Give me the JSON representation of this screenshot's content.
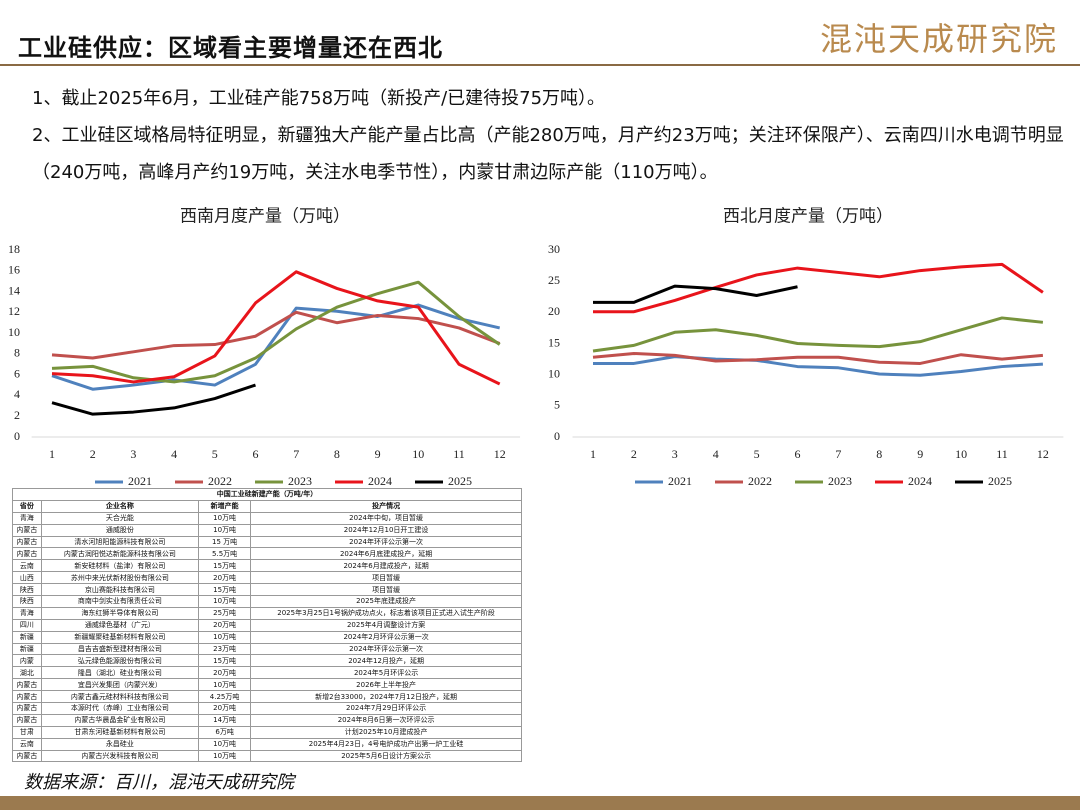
{
  "header": {
    "title": "工业硅供应：区域看主要增量还在西北",
    "logo": "混沌天成研究院"
  },
  "bullets": [
    "1、截止2025年6月，工业硅产能758万吨（新投产/已建待投75万吨）。",
    "2、工业硅区域格局特征明显，新疆独大产能产量占比高（产能280万吨，月产约23万吨；关注环保限产）、云南四川水电调节明显（240万吨，高峰月产约19万吨，关注水电季节性），内蒙甘肃边际产能（110万吨）。"
  ],
  "chart_data": [
    {
      "type": "line",
      "title": "西南月度产量（万吨）",
      "categories": [
        "1",
        "2",
        "3",
        "4",
        "5",
        "6",
        "7",
        "8",
        "9",
        "10",
        "11",
        "12"
      ],
      "ylim": [
        0,
        18
      ],
      "yticks": [
        0,
        2,
        4,
        6,
        8,
        10,
        12,
        14,
        16,
        18
      ],
      "grid": false,
      "series": [
        {
          "name": "2021",
          "color": "#4f81bd",
          "values": [
            5.9,
            4.6,
            5.0,
            5.5,
            5.0,
            7.0,
            12.4,
            12.1,
            11.6,
            12.7,
            11.4,
            10.5
          ]
        },
        {
          "name": "2022",
          "color": "#c0504d",
          "values": [
            7.9,
            7.6,
            8.2,
            8.8,
            8.9,
            9.7,
            12.0,
            11.0,
            11.7,
            11.4,
            10.5,
            9.0
          ]
        },
        {
          "name": "2023",
          "color": "#77933c",
          "values": [
            6.6,
            6.8,
            5.7,
            5.3,
            5.9,
            7.6,
            10.4,
            12.5,
            13.8,
            14.9,
            11.6,
            8.9
          ]
        },
        {
          "name": "2024",
          "color": "#e8141b",
          "values": [
            6.1,
            5.9,
            5.3,
            5.8,
            7.8,
            12.9,
            15.9,
            14.3,
            13.1,
            12.5,
            7.0,
            5.1
          ]
        },
        {
          "name": "2025",
          "color": "#000000",
          "values": [
            3.3,
            2.2,
            2.4,
            2.8,
            3.7,
            5.0,
            null,
            null,
            null,
            null,
            null,
            null
          ]
        }
      ]
    },
    {
      "type": "line",
      "title": "西北月度产量（万吨）",
      "categories": [
        "1",
        "2",
        "3",
        "4",
        "5",
        "6",
        "7",
        "8",
        "9",
        "10",
        "11",
        "12"
      ],
      "ylim": [
        0,
        30
      ],
      "yticks": [
        0,
        5,
        10,
        15,
        20,
        25,
        30
      ],
      "grid": false,
      "series": [
        {
          "name": "2021",
          "color": "#4f81bd",
          "values": [
            11.8,
            11.8,
            12.9,
            12.5,
            12.3,
            11.3,
            11.1,
            10.1,
            9.9,
            10.5,
            11.3,
            11.7
          ]
        },
        {
          "name": "2022",
          "color": "#c0504d",
          "values": [
            12.8,
            13.4,
            13.1,
            12.2,
            12.4,
            12.8,
            12.8,
            12.0,
            11.8,
            13.2,
            12.5,
            13.1
          ]
        },
        {
          "name": "2023",
          "color": "#77933c",
          "values": [
            13.8,
            14.7,
            16.8,
            17.2,
            16.3,
            15.0,
            14.7,
            14.5,
            15.3,
            17.2,
            19.1,
            18.4
          ]
        },
        {
          "name": "2024",
          "color": "#e8141b",
          "values": [
            20.1,
            20.1,
            21.9,
            24.0,
            26.0,
            27.1,
            26.4,
            25.7,
            26.7,
            27.3,
            27.7,
            23.2
          ]
        },
        {
          "name": "2025",
          "color": "#000000",
          "values": [
            21.6,
            21.6,
            24.2,
            23.8,
            22.7,
            24.1,
            null,
            null,
            null,
            null,
            null,
            null
          ]
        }
      ]
    }
  ],
  "table": {
    "title": "中国工业硅新建产能（万吨/年）",
    "columns": [
      "省份",
      "企业名称",
      "新增产能",
      "投产情况"
    ],
    "rows": [
      [
        "青海",
        "天合光能",
        "10万吨",
        "2024年中旬，项目暂缓"
      ],
      [
        "内蒙古",
        "通威股份",
        "10万吨",
        "2024年12月10日开工建设"
      ],
      [
        "内蒙古",
        "清水河旭阳能源科技有限公司",
        "15 万吨",
        "2024年环评公示第一次"
      ],
      [
        "内蒙古",
        "内蒙古润阳悦达新能源科技有限公司",
        "5.5万吨",
        "2024年6月底建成投产，延期"
      ],
      [
        "云南",
        "新安硅材料（盐津）有限公司",
        "15万吨",
        "2024年6月建成投产，延期"
      ],
      [
        "山西",
        "苏州中来光伏新材股份有限公司",
        "20万吨",
        "项目暂缓"
      ],
      [
        "陕西",
        "京山赛能科技有限公司",
        "15万吨",
        "项目暂缓"
      ],
      [
        "陕西",
        "商南中剑实业有限责任公司",
        "10万吨",
        "2025年底建成投产"
      ],
      [
        "青海",
        "海东红狮半导体有限公司",
        "25万吨",
        "2025年3月25日1号锅炉成功点火，标志着该项目正式进入试生产阶段"
      ],
      [
        "四川",
        "通威绿色基材（广元）",
        "20万吨",
        "2025年4月调整设计方案"
      ],
      [
        "新疆",
        "新疆耀聚硅基新材料有限公司",
        "10万吨",
        "2024年2月环评公示第一次"
      ],
      [
        "新疆",
        "昌吉吉盛新型建材有限公司",
        "23万吨",
        "2024年环评公示第一次"
      ],
      [
        "内蒙",
        "弘元绿色能源股份有限公司",
        "15万吨",
        "2024年12月投产，延期"
      ],
      [
        "湖北",
        "隆昌（湖北）硅业有限公司",
        "20万吨",
        "2024年5月环评公示"
      ],
      [
        "内蒙古",
        "宜昌兴发集团（内蒙兴发）",
        "10万吨",
        "2026年上半年投产"
      ],
      [
        "内蒙古",
        "内蒙古鑫元硅材料科技有限公司",
        "4.25万吨",
        "新增2台33000，2024年7月12日投产，延期"
      ],
      [
        "内蒙古",
        "本源时代（赤峰）工业有限公司",
        "20万吨",
        "2024年7月29日环评公示"
      ],
      [
        "内蒙古",
        "内蒙古华晨晶金矿业有限公司",
        "14万吨",
        "2024年8月6日第一次环评公示"
      ],
      [
        "甘肃",
        "甘肃东河硅基新材料有限公司",
        "6万吨",
        "计划2025年10月建成投产"
      ],
      [
        "云南",
        "永昌硅业",
        "10万吨",
        "2025年4月23日，4号电炉成功产出第一炉工业硅"
      ],
      [
        "内蒙古",
        "内蒙古兴发科技有限公司",
        "10万吨",
        "2025年5月6日设计方案公示"
      ]
    ]
  },
  "source": "数据来源：百川，混沌天成研究院"
}
